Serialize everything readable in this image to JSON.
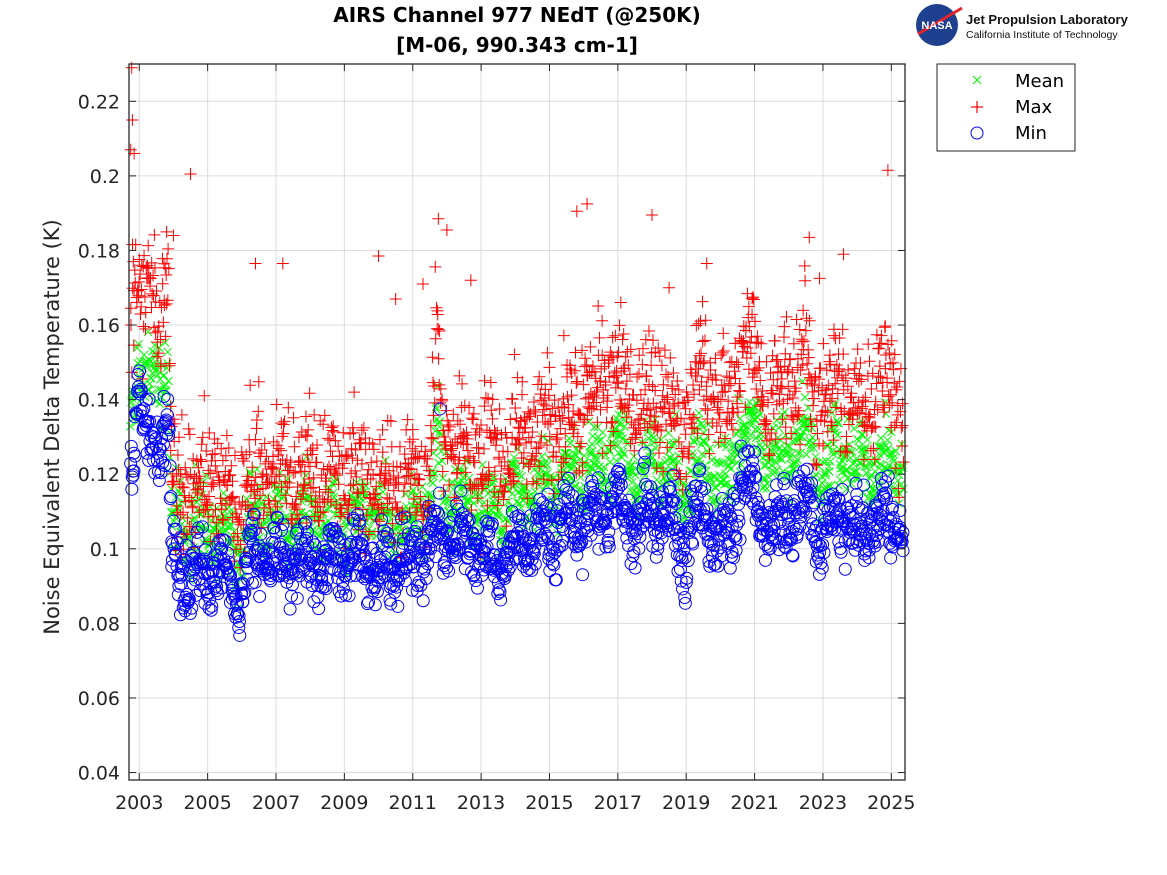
{
  "chart_data": {
    "type": "scatter",
    "title": [
      "AIRS Channel 977 NEdT (@250K)",
      "[M-06, 990.343 cm-1]"
    ],
    "xlabel": "",
    "ylabel": "Noise Equivalent Delta Temperature (K)",
    "xlim": [
      2002.7,
      2025.4
    ],
    "ylim": [
      0.038,
      0.23
    ],
    "x_ticks": [
      2003,
      2005,
      2007,
      2009,
      2011,
      2013,
      2015,
      2017,
      2019,
      2021,
      2023,
      2025
    ],
    "x_tick_labels": [
      "2003",
      "2005",
      "2007",
      "2009",
      "2011",
      "2013",
      "2015",
      "2017",
      "2019",
      "2021",
      "2023",
      "2025"
    ],
    "y_ticks": [
      0.04,
      0.06,
      0.08,
      0.1,
      0.12,
      0.14,
      0.16,
      0.18,
      0.2,
      0.22
    ],
    "y_tick_labels": [
      "0.04",
      "0.06",
      "0.08",
      "0.1",
      "0.12",
      "0.14",
      "0.16",
      "0.18",
      "0.2",
      "0.22"
    ],
    "grid": true,
    "legend_position": "outside-top-right",
    "series": [
      {
        "name": "Mean",
        "marker": "x",
        "color": "#00ff00",
        "trend_x": [
          2002.75,
          2003.0,
          2003.1,
          2003.5,
          2003.85,
          2003.95,
          2004.5,
          2005.5,
          2005.9,
          2006.3,
          2007.0,
          2008.0,
          2009.0,
          2010.0,
          2010.5,
          2011.0,
          2011.5,
          2011.7,
          2011.9,
          2012.5,
          2013.0,
          2013.5,
          2014.0,
          2014.5,
          2015.0,
          2015.5,
          2016.0,
          2016.5,
          2017.0,
          2017.5,
          2018.0,
          2018.5,
          2018.8,
          2019.2,
          2019.5,
          2020.0,
          2020.3,
          2020.6,
          2021.0,
          2021.5,
          2022.0,
          2022.5,
          2023.0,
          2023.5,
          2024.0,
          2024.5,
          2025.0,
          2025.35
        ],
        "trend_y": [
          0.14,
          0.152,
          0.145,
          0.146,
          0.148,
          0.106,
          0.106,
          0.107,
          0.099,
          0.108,
          0.108,
          0.109,
          0.109,
          0.108,
          0.106,
          0.107,
          0.11,
          0.135,
          0.116,
          0.113,
          0.112,
          0.111,
          0.113,
          0.117,
          0.118,
          0.12,
          0.121,
          0.123,
          0.126,
          0.12,
          0.123,
          0.121,
          0.114,
          0.123,
          0.126,
          0.12,
          0.118,
          0.135,
          0.132,
          0.122,
          0.125,
          0.132,
          0.12,
          0.127,
          0.123,
          0.124,
          0.124,
          0.122
        ],
        "spread": 0.005
      },
      {
        "name": "Max",
        "marker": "+",
        "color": "#ff0000",
        "trend_x": [
          2002.75,
          2003.0,
          2003.1,
          2003.5,
          2003.85,
          2003.95,
          2004.5,
          2005.5,
          2005.9,
          2006.3,
          2007.0,
          2008.0,
          2009.0,
          2010.0,
          2010.5,
          2011.0,
          2011.5,
          2011.7,
          2011.9,
          2012.5,
          2013.0,
          2013.5,
          2014.0,
          2014.5,
          2015.0,
          2015.5,
          2016.0,
          2016.5,
          2017.0,
          2017.5,
          2018.0,
          2018.5,
          2018.8,
          2019.2,
          2019.5,
          2020.0,
          2020.3,
          2020.6,
          2021.0,
          2021.5,
          2022.0,
          2022.5,
          2023.0,
          2023.5,
          2024.0,
          2024.5,
          2025.0,
          2025.35
        ],
        "trend_y": [
          0.17,
          0.18,
          0.165,
          0.168,
          0.172,
          0.117,
          0.118,
          0.118,
          0.11,
          0.12,
          0.121,
          0.122,
          0.121,
          0.12,
          0.118,
          0.12,
          0.122,
          0.16,
          0.128,
          0.127,
          0.125,
          0.124,
          0.128,
          0.133,
          0.135,
          0.138,
          0.14,
          0.145,
          0.148,
          0.138,
          0.142,
          0.14,
          0.128,
          0.142,
          0.146,
          0.138,
          0.135,
          0.158,
          0.152,
          0.14,
          0.145,
          0.152,
          0.138,
          0.146,
          0.14,
          0.142,
          0.142,
          0.138
        ],
        "spread": 0.008,
        "outliers": [
          [
            2002.78,
            0.229
          ],
          [
            2002.8,
            0.215
          ],
          [
            2002.75,
            0.207
          ],
          [
            2002.85,
            0.206
          ],
          [
            2004.5,
            0.2005
          ],
          [
            2006.4,
            0.1765
          ],
          [
            2007.2,
            0.1765
          ],
          [
            2010.0,
            0.1785
          ],
          [
            2011.75,
            0.1885
          ],
          [
            2012.0,
            0.1855
          ],
          [
            2011.3,
            0.171
          ],
          [
            2012.7,
            0.172
          ],
          [
            2015.8,
            0.1905
          ],
          [
            2016.1,
            0.1925
          ],
          [
            2018.0,
            0.1895
          ],
          [
            2018.5,
            0.17
          ],
          [
            2019.6,
            0.1765
          ],
          [
            2022.6,
            0.1835
          ],
          [
            2023.6,
            0.179
          ],
          [
            2022.9,
            0.1725
          ],
          [
            2024.9,
            0.2015
          ],
          [
            2010.5,
            0.167
          ],
          [
            2004.0,
            0.184
          ],
          [
            2003.8,
            0.185
          ]
        ]
      },
      {
        "name": "Min",
        "marker": "o",
        "color": "#0000ff",
        "trend_x": [
          2002.75,
          2002.9,
          2003.0,
          2003.1,
          2003.5,
          2003.85,
          2003.95,
          2004.5,
          2005.5,
          2005.9,
          2006.3,
          2007.0,
          2008.0,
          2009.0,
          2010.0,
          2010.5,
          2011.0,
          2011.5,
          2011.7,
          2011.9,
          2012.5,
          2013.0,
          2013.5,
          2014.0,
          2014.5,
          2015.0,
          2015.5,
          2016.0,
          2016.5,
          2017.0,
          2017.5,
          2018.0,
          2018.5,
          2018.8,
          2019.2,
          2019.5,
          2020.0,
          2020.3,
          2020.6,
          2021.0,
          2021.5,
          2022.0,
          2022.5,
          2023.0,
          2023.5,
          2024.0,
          2024.5,
          2025.0,
          2025.35
        ],
        "trend_y": [
          0.122,
          0.138,
          0.15,
          0.13,
          0.13,
          0.134,
          0.094,
          0.094,
          0.094,
          0.088,
          0.097,
          0.096,
          0.097,
          0.097,
          0.096,
          0.095,
          0.098,
          0.1,
          0.102,
          0.104,
          0.101,
          0.1,
          0.098,
          0.101,
          0.104,
          0.104,
          0.107,
          0.109,
          0.11,
          0.113,
          0.105,
          0.11,
          0.109,
          0.098,
          0.108,
          0.11,
          0.105,
          0.103,
          0.118,
          0.114,
          0.106,
          0.108,
          0.115,
          0.104,
          0.109,
          0.103,
          0.108,
          0.108,
          0.104
        ],
        "spread": 0.0045,
        "outliers": [
          [
            2004.2,
            0.103
          ],
          [
            2005.3,
            0.1015
          ],
          [
            2011.8,
            0.1375
          ]
        ]
      }
    ]
  },
  "legend": {
    "items": [
      {
        "label": "Mean",
        "marker": "x",
        "color": "#00ff00"
      },
      {
        "label": "Max",
        "marker": "+",
        "color": "#ff0000"
      },
      {
        "label": "Min",
        "marker": "o",
        "color": "#0000ff"
      }
    ]
  },
  "logo": {
    "badge_text": "NASA",
    "title": "Jet Propulsion Laboratory",
    "subtitle": "California Institute of Technology"
  }
}
